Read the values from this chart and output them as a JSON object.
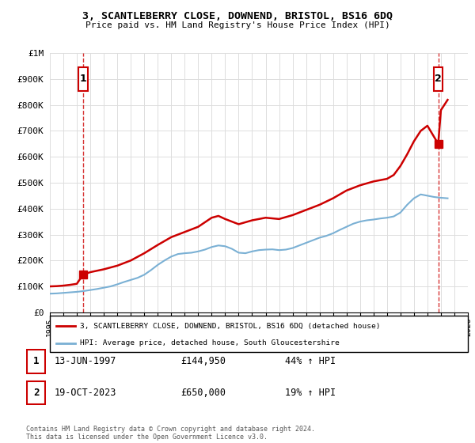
{
  "title": "3, SCANTLEBERRY CLOSE, DOWNEND, BRISTOL, BS16 6DQ",
  "subtitle": "Price paid vs. HM Land Registry's House Price Index (HPI)",
  "ylim": [
    0,
    1000000
  ],
  "yticks": [
    0,
    100000,
    200000,
    300000,
    400000,
    500000,
    600000,
    700000,
    800000,
    900000,
    1000000
  ],
  "ytick_labels": [
    "£0",
    "£100K",
    "£200K",
    "£300K",
    "£400K",
    "£500K",
    "£600K",
    "£700K",
    "£800K",
    "£900K",
    "£1M"
  ],
  "xlim_start": 1995,
  "xlim_end": 2026,
  "background_color": "#ffffff",
  "grid_color": "#dddddd",
  "sale1_date": 1997.45,
  "sale1_price": 144950,
  "sale2_date": 2023.8,
  "sale2_price": 650000,
  "red_color": "#cc0000",
  "blue_color": "#7ab0d4",
  "legend_line1": "3, SCANTLEBERRY CLOSE, DOWNEND, BRISTOL, BS16 6DQ (detached house)",
  "legend_line2": "HPI: Average price, detached house, South Gloucestershire",
  "table_row1": [
    "1",
    "13-JUN-1997",
    "£144,950",
    "44% ↑ HPI"
  ],
  "table_row2": [
    "2",
    "19-OCT-2023",
    "£650,000",
    "19% ↑ HPI"
  ],
  "footer": "Contains HM Land Registry data © Crown copyright and database right 2024.\nThis data is licensed under the Open Government Licence v3.0.",
  "hpi_years": [
    1995,
    1995.5,
    1996,
    1996.5,
    1997,
    1997.5,
    1998,
    1998.5,
    1999,
    1999.5,
    2000,
    2000.5,
    2001,
    2001.5,
    2002,
    2002.5,
    2003,
    2003.5,
    2004,
    2004.5,
    2005,
    2005.5,
    2006,
    2006.5,
    2007,
    2007.5,
    2008,
    2008.5,
    2009,
    2009.5,
    2010,
    2010.5,
    2011,
    2011.5,
    2012,
    2012.5,
    2013,
    2013.5,
    2014,
    2014.5,
    2015,
    2015.5,
    2016,
    2016.5,
    2017,
    2017.5,
    2018,
    2018.5,
    2019,
    2019.5,
    2020,
    2020.5,
    2021,
    2021.5,
    2022,
    2022.5,
    2023,
    2023.5,
    2024,
    2024.5
  ],
  "hpi_values": [
    72000,
    73000,
    75000,
    77000,
    79000,
    82000,
    86000,
    90000,
    95000,
    100000,
    108000,
    117000,
    125000,
    133000,
    145000,
    163000,
    183000,
    200000,
    215000,
    225000,
    228000,
    230000,
    235000,
    242000,
    252000,
    258000,
    255000,
    245000,
    230000,
    228000,
    235000,
    240000,
    242000,
    243000,
    240000,
    242000,
    248000,
    258000,
    268000,
    278000,
    288000,
    295000,
    305000,
    318000,
    330000,
    342000,
    350000,
    355000,
    358000,
    362000,
    365000,
    370000,
    385000,
    415000,
    440000,
    455000,
    450000,
    445000,
    442000,
    440000
  ],
  "property_years": [
    1995,
    1995.5,
    1996,
    1996.5,
    1997,
    1997.45,
    1998,
    1999,
    2000,
    2001,
    2002,
    2003,
    2004,
    2005,
    2006,
    2007,
    2007.5,
    2008,
    2009,
    2010,
    2011,
    2012,
    2013,
    2014,
    2015,
    2016,
    2017,
    2018,
    2019,
    2020,
    2020.5,
    2021,
    2021.5,
    2022,
    2022.5,
    2023,
    2023.8,
    2024,
    2024.5
  ],
  "property_values": [
    100000,
    101000,
    103000,
    106000,
    110000,
    144950,
    155000,
    166000,
    180000,
    200000,
    228000,
    260000,
    290000,
    310000,
    330000,
    365000,
    372000,
    360000,
    340000,
    355000,
    365000,
    360000,
    375000,
    395000,
    415000,
    440000,
    470000,
    490000,
    505000,
    515000,
    530000,
    565000,
    610000,
    660000,
    700000,
    720000,
    650000,
    780000,
    820000
  ]
}
